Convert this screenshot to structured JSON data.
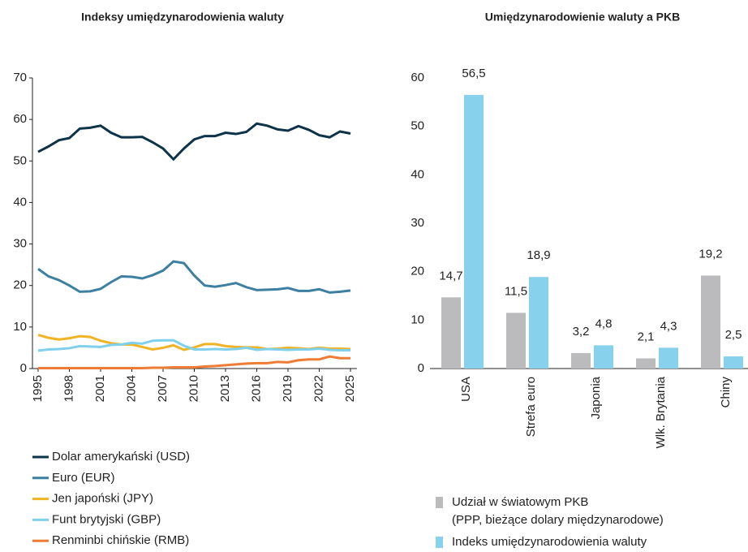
{
  "chart_data": [
    {
      "type": "line",
      "title": "Indeksy umiędzynarodowienia waluty",
      "x": [
        1995,
        1996,
        1997,
        1998,
        1999,
        2000,
        2001,
        2002,
        2003,
        2004,
        2005,
        2006,
        2007,
        2008,
        2009,
        2010,
        2011,
        2012,
        2013,
        2014,
        2015,
        2016,
        2017,
        2018,
        2019,
        2020,
        2021,
        2022,
        2023,
        2024,
        2025
      ],
      "xlim": [
        1995,
        2025
      ],
      "xticks": [
        1995,
        1998,
        2001,
        2004,
        2007,
        2010,
        2013,
        2016,
        2019,
        2022,
        2025
      ],
      "ylim": [
        0,
        70
      ],
      "yticks": [
        0,
        10,
        20,
        30,
        40,
        50,
        60,
        70
      ],
      "series": [
        {
          "name": "Dolar amerykański (USD)",
          "color": "#0d3349",
          "values": [
            52.2,
            53.5,
            55,
            55.5,
            57.8,
            58,
            58.5,
            56.8,
            55.7,
            55.7,
            55.8,
            54.5,
            53,
            50.4,
            53,
            55.2,
            56,
            56,
            56.8,
            56.5,
            57,
            59,
            58.5,
            57.6,
            57.3,
            58.4,
            57.5,
            56.2,
            55.7,
            57.1,
            56.6
          ]
        },
        {
          "name": "Euro (EUR)",
          "color": "#3d7fa0",
          "values": [
            24,
            22.2,
            21.3,
            20,
            18.5,
            18.6,
            19.2,
            20.8,
            22.2,
            22.1,
            21.7,
            22.5,
            23.6,
            25.8,
            25.4,
            22.4,
            20,
            19.7,
            20.1,
            20.6,
            19.6,
            18.9,
            19,
            19.1,
            19.4,
            18.7,
            18.7,
            19.1,
            18.3,
            18.5,
            18.8
          ]
        },
        {
          "name": "Jen japoński (JPY)",
          "color": "#f0b323",
          "values": [
            8.1,
            7.4,
            7.0,
            7.3,
            7.8,
            7.6,
            6.7,
            6.1,
            5.8,
            5.8,
            5.2,
            4.6,
            5.0,
            5.6,
            4.5,
            5.1,
            5.9,
            5.9,
            5.4,
            5.2,
            5.1,
            5.1,
            4.7,
            4.8,
            5.0,
            4.9,
            4.7,
            5.0,
            4.8,
            4.8,
            4.7
          ]
        },
        {
          "name": "Funt brytyjski (GBP)",
          "color": "#7fd0ec",
          "values": [
            4.3,
            4.6,
            4.7,
            4.9,
            5.4,
            5.3,
            5.2,
            5.7,
            5.8,
            6.2,
            6.0,
            6.7,
            6.8,
            6.8,
            5.5,
            4.6,
            4.6,
            4.7,
            4.6,
            4.7,
            5.0,
            4.5,
            4.7,
            4.6,
            4.5,
            4.6,
            4.6,
            4.8,
            4.5,
            4.4,
            4.4
          ]
        },
        {
          "name": "Renminbi chińskie (RMB)",
          "color": "#ef7c35",
          "values": [
            0.1,
            0.1,
            0.1,
            0.1,
            0.1,
            0.1,
            0.1,
            0.1,
            0.1,
            0.1,
            0.1,
            0.2,
            0.2,
            0.3,
            0.3,
            0.3,
            0.5,
            0.6,
            0.8,
            1.0,
            1.2,
            1.3,
            1.3,
            1.6,
            1.5,
            2.0,
            2.2,
            2.2,
            2.9,
            2.5,
            2.5
          ]
        }
      ]
    },
    {
      "type": "bar",
      "title": "Umiędzynarodowienie waluty a PKB",
      "categories": [
        "USA",
        "Strefa euro",
        "Japonia",
        "Wlk. Brytania",
        "Chiny"
      ],
      "ylim": [
        0,
        60
      ],
      "yticks": [
        0,
        10,
        20,
        30,
        40,
        50,
        60
      ],
      "series": [
        {
          "name": "Udział w światowym PKB (PPP, bieżące dolary międzynarodowe)",
          "color": "#bbbbbd",
          "values": [
            14.7,
            11.5,
            3.2,
            2.1,
            19.2
          ],
          "value_labels": [
            "14,7",
            "11,5",
            "3,2",
            "2,1",
            "19,2"
          ]
        },
        {
          "name": "Indeks umiędzynarodowienia waluty",
          "color": "#87d1ec",
          "values": [
            56.5,
            18.9,
            4.8,
            4.3,
            2.5
          ],
          "value_labels": [
            "56,5",
            "18,9",
            "4,8",
            "4,3",
            "2,5"
          ]
        }
      ]
    }
  ]
}
